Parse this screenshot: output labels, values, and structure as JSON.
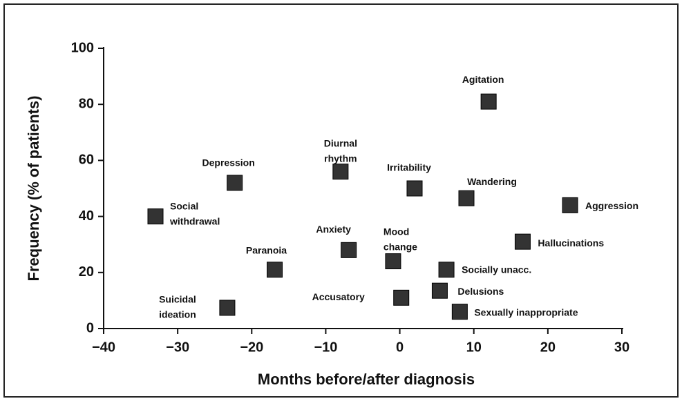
{
  "chart_data": {
    "type": "scatter",
    "x_label": "Months before/after diagnosis",
    "y_label": "Frequency (% of patients)",
    "labels": [
      [
        "Agitation"
      ],
      [
        "Diurnal",
        "rhythm"
      ],
      [
        "Depression"
      ],
      [
        "Irritability"
      ],
      [
        "Wandering"
      ],
      [
        "Aggression"
      ],
      [
        "Social",
        "withdrawal"
      ],
      [
        "Hallucinations"
      ],
      [
        "Anxiety"
      ],
      [
        "Mood",
        "change"
      ],
      [
        "Paranoia"
      ],
      [
        "Socially unacc."
      ],
      [
        "Delusions"
      ],
      [
        "Accusatory"
      ],
      [
        "Suicidal",
        "ideation"
      ],
      [
        "Sexually inappropriate"
      ]
    ],
    "x": [
      12,
      -8,
      -22.3,
      2,
      9,
      23,
      -33,
      16.6,
      -6.9,
      -0.9,
      -16.9,
      6.3,
      5.4,
      0.2,
      -23.3,
      8.1
    ],
    "values": [
      81,
      56,
      52,
      50,
      46.5,
      44,
      40,
      31,
      28,
      24,
      21,
      21,
      13.5,
      11,
      7.4,
      6
    ],
    "color": "#333333",
    "xlim": [
      -40,
      30
    ],
    "xticks": [
      -40,
      -30,
      -20,
      -10,
      0,
      10,
      20,
      30
    ],
    "ylim": [
      0,
      100
    ],
    "yticks": [
      0,
      20,
      40,
      60,
      80,
      100
    ]
  }
}
